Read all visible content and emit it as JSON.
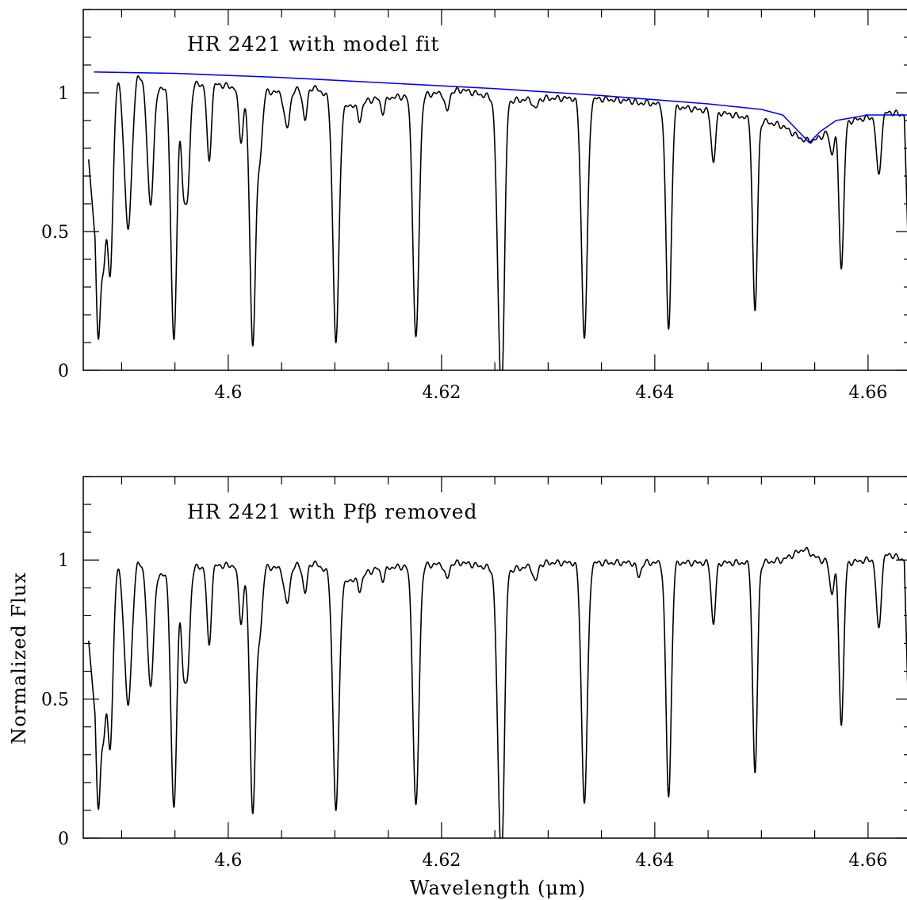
{
  "chart_data": [
    {
      "type": "line",
      "title": "HR 2421 with model fit",
      "xlabel": "",
      "ylabel": "",
      "xlim": [
        4.5864,
        4.6641
      ],
      "ylim": [
        0,
        1.3
      ],
      "x_ticks": [
        4.6,
        4.62,
        4.64,
        4.66
      ],
      "x_tick_labels": [
        "4.6",
        "4.62",
        "4.64",
        "4.66"
      ],
      "y_ticks": [
        0,
        0.5,
        1
      ],
      "y_tick_labels": [
        "0",
        "0.5",
        "1"
      ],
      "series": [
        {
          "color": "#000000",
          "continuum": [
            [
              4.5875,
              0.76
            ],
            [
              4.5895,
              1.06
            ],
            [
              4.5915,
              1.07
            ],
            [
              4.5935,
              1.02
            ],
            [
              4.596,
              1.03
            ],
            [
              4.599,
              1.03
            ],
            [
              4.602,
              1.01
            ],
            [
              4.605,
              1.0
            ],
            [
              4.608,
              1.02
            ],
            [
              4.611,
              0.95
            ],
            [
              4.614,
              0.98
            ],
            [
              4.618,
              0.99
            ],
            [
              4.622,
              1.01
            ],
            [
              4.626,
              0.97
            ],
            [
              4.63,
              0.98
            ],
            [
              4.634,
              0.98
            ],
            [
              4.638,
              0.97
            ],
            [
              4.642,
              0.95
            ],
            [
              4.646,
              0.93
            ],
            [
              4.65,
              0.9
            ],
            [
              4.652,
              0.88
            ],
            [
              4.6535,
              0.84
            ],
            [
              4.6545,
              0.82
            ],
            [
              4.6555,
              0.84
            ],
            [
              4.657,
              0.88
            ],
            [
              4.6585,
              0.9
            ],
            [
              4.66,
              0.91
            ],
            [
              4.662,
              0.93
            ],
            [
              4.6634,
              0.92
            ],
            [
              4.6641,
              0.0
            ]
          ],
          "lines": [
            [
              4.5878,
              0.13,
              0.00024
            ],
            [
              4.5883,
              0.5,
              0.0002
            ],
            [
              4.5889,
              0.35,
              0.00028
            ],
            [
              4.5906,
              0.51,
              0.00035
            ],
            [
              4.5927,
              0.6,
              0.0003
            ],
            [
              4.5949,
              0.11,
              0.00028
            ],
            [
              4.5958,
              0.7,
              0.0002
            ],
            [
              4.5962,
              0.67,
              0.00022
            ],
            [
              4.5982,
              0.75,
              0.0002
            ],
            [
              4.6012,
              0.83,
              0.00022
            ],
            [
              4.6023,
              0.1,
              0.00028
            ],
            [
              4.603,
              0.8,
              0.00022
            ],
            [
              4.6055,
              0.87,
              0.00025
            ],
            [
              4.6072,
              0.9,
              0.0002
            ],
            [
              4.6101,
              0.1,
              0.00028
            ],
            [
              4.6123,
              0.9,
              0.0002
            ],
            [
              4.6145,
              0.93,
              0.0002
            ],
            [
              4.6176,
              0.11,
              0.00028
            ],
            [
              4.6205,
              0.93,
              0.0002
            ],
            [
              4.6255,
              0.11,
              0.00028
            ],
            [
              4.6258,
              0.6,
              0.0002
            ],
            [
              4.6288,
              0.94,
              0.0002
            ],
            [
              4.6334,
              0.12,
              0.00028
            ],
            [
              4.6385,
              0.96,
              0.0002
            ],
            [
              4.6413,
              0.15,
              0.00025
            ],
            [
              4.6455,
              0.75,
              0.0002
            ],
            [
              4.6494,
              0.21,
              0.00022
            ],
            [
              4.6545,
              0.83,
              0.0002
            ],
            [
              4.6566,
              0.78,
              0.0002
            ],
            [
              4.6575,
              0.37,
              0.00022
            ],
            [
              4.661,
              0.7,
              0.00022
            ]
          ]
        },
        {
          "color": "#0000ff",
          "model": [
            [
              4.5874,
              1.075
            ],
            [
              4.595,
              1.07
            ],
            [
              4.605,
              1.055
            ],
            [
              4.615,
              1.035
            ],
            [
              4.625,
              1.015
            ],
            [
              4.635,
              0.99
            ],
            [
              4.645,
              0.96
            ],
            [
              4.65,
              0.94
            ],
            [
              4.652,
              0.92
            ],
            [
              4.6535,
              0.86
            ],
            [
              4.6545,
              0.82
            ],
            [
              4.6555,
              0.86
            ],
            [
              4.657,
              0.9
            ],
            [
              4.66,
              0.92
            ],
            [
              4.6641,
              0.92
            ]
          ]
        }
      ]
    },
    {
      "type": "line",
      "title": "HR 2421 with Pfβ removed",
      "xlabel": "Wavelength (μm)",
      "ylabel": "Normalized Flux",
      "xlim": [
        4.5864,
        4.6641
      ],
      "ylim": [
        0,
        1.3
      ],
      "x_ticks": [
        4.6,
        4.62,
        4.64,
        4.66
      ],
      "x_tick_labels": [
        "4.6",
        "4.62",
        "4.64",
        "4.66"
      ],
      "y_ticks": [
        0,
        0.5,
        1
      ],
      "y_tick_labels": [
        "0",
        "0.5",
        "1"
      ],
      "series": [
        {
          "color": "#000000",
          "continuum": [
            [
              4.5875,
              0.71
            ],
            [
              4.5895,
              0.99
            ],
            [
              4.5915,
              1.0
            ],
            [
              4.5935,
              0.95
            ],
            [
              4.596,
              0.97
            ],
            [
              4.599,
              0.98
            ],
            [
              4.602,
              0.98
            ],
            [
              4.605,
              0.97
            ],
            [
              4.608,
              0.99
            ],
            [
              4.611,
              0.92
            ],
            [
              4.614,
              0.97
            ],
            [
              4.618,
              0.98
            ],
            [
              4.622,
              0.99
            ],
            [
              4.626,
              0.96
            ],
            [
              4.63,
              0.99
            ],
            [
              4.634,
              0.99
            ],
            [
              4.638,
              0.99
            ],
            [
              4.642,
              0.99
            ],
            [
              4.646,
              0.99
            ],
            [
              4.65,
              0.99
            ],
            [
              4.652,
              1.0
            ],
            [
              4.654,
              1.04
            ],
            [
              4.6555,
              1.0
            ],
            [
              4.658,
              0.99
            ],
            [
              4.66,
              1.0
            ],
            [
              4.662,
              1.02
            ],
            [
              4.6634,
              1.0
            ],
            [
              4.6641,
              0.0
            ]
          ],
          "lines": [
            [
              4.5878,
              0.12,
              0.00024
            ],
            [
              4.5883,
              0.48,
              0.0002
            ],
            [
              4.5889,
              0.33,
              0.00028
            ],
            [
              4.5906,
              0.48,
              0.00035
            ],
            [
              4.5927,
              0.55,
              0.0003
            ],
            [
              4.5949,
              0.11,
              0.00028
            ],
            [
              4.5958,
              0.65,
              0.0002
            ],
            [
              4.5962,
              0.63,
              0.00022
            ],
            [
              4.5982,
              0.69,
              0.0002
            ],
            [
              4.6012,
              0.78,
              0.00022
            ],
            [
              4.6023,
              0.1,
              0.00028
            ],
            [
              4.603,
              0.77,
              0.00022
            ],
            [
              4.6055,
              0.84,
              0.00025
            ],
            [
              4.6072,
              0.88,
              0.0002
            ],
            [
              4.6101,
              0.1,
              0.00028
            ],
            [
              4.6123,
              0.89,
              0.0002
            ],
            [
              4.6145,
              0.93,
              0.0002
            ],
            [
              4.6176,
              0.11,
              0.00028
            ],
            [
              4.6205,
              0.93,
              0.0002
            ],
            [
              4.6255,
              0.11,
              0.00028
            ],
            [
              4.6258,
              0.6,
              0.0002
            ],
            [
              4.6288,
              0.92,
              0.0002
            ],
            [
              4.6334,
              0.13,
              0.00028
            ],
            [
              4.6385,
              0.94,
              0.0002
            ],
            [
              4.6413,
              0.15,
              0.00025
            ],
            [
              4.6455,
              0.77,
              0.0002
            ],
            [
              4.6494,
              0.23,
              0.00022
            ],
            [
              4.6566,
              0.88,
              0.0002
            ],
            [
              4.6575,
              0.41,
              0.00022
            ],
            [
              4.661,
              0.75,
              0.00022
            ]
          ]
        }
      ]
    }
  ]
}
